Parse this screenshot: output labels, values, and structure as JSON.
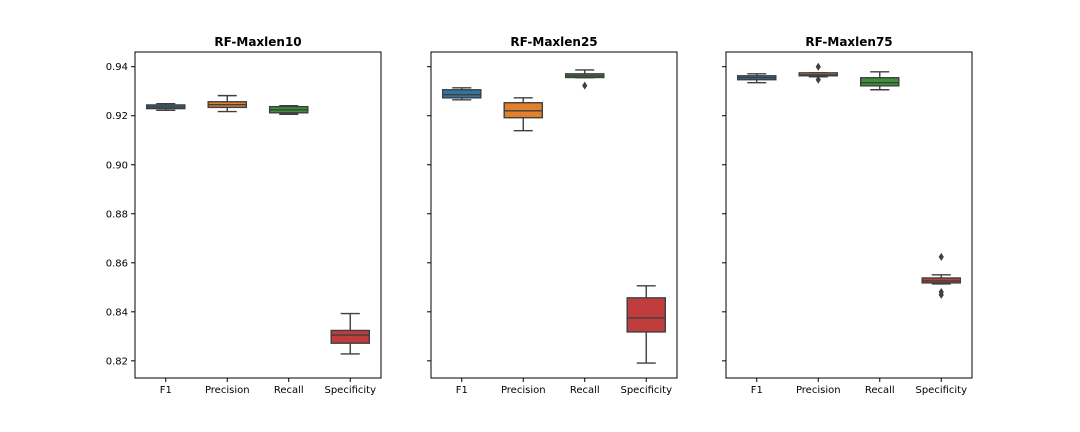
{
  "chart_data": [
    {
      "type": "box",
      "title": "RF-Maxlen10",
      "categories": [
        "F1",
        "Precision",
        "Recall",
        "Specificity"
      ],
      "colors": [
        "#3274a1",
        "#e1812c",
        "#3a923a",
        "#c03d3e"
      ],
      "ylim": [
        0.813,
        0.946
      ],
      "yticks": [
        "0.94",
        "0.92",
        "0.90",
        "0.88",
        "0.86",
        "0.84",
        "0.82"
      ],
      "show_ytick_labels": true,
      "boxes": [
        {
          "whisker_low": 0.9222,
          "q1": 0.9229,
          "median": 0.9236,
          "q3": 0.9244,
          "whisker_high": 0.9249,
          "outliers": []
        },
        {
          "whisker_low": 0.9217,
          "q1": 0.9234,
          "median": 0.9245,
          "q3": 0.9257,
          "whisker_high": 0.9282,
          "outliers": []
        },
        {
          "whisker_low": 0.9206,
          "q1": 0.9212,
          "median": 0.9224,
          "q3": 0.9237,
          "whisker_high": 0.9241,
          "outliers": []
        },
        {
          "whisker_low": 0.8228,
          "q1": 0.8272,
          "median": 0.8305,
          "q3": 0.8324,
          "whisker_high": 0.8393,
          "outliers": []
        }
      ]
    },
    {
      "type": "box",
      "title": "RF-Maxlen25",
      "categories": [
        "F1",
        "Precision",
        "Recall",
        "Specificity"
      ],
      "colors": [
        "#3274a1",
        "#e1812c",
        "#3a923a",
        "#c03d3e"
      ],
      "ylim": [
        0.813,
        0.946
      ],
      "yticks": [
        "0.94",
        "0.92",
        "0.90",
        "0.88",
        "0.86",
        "0.84",
        "0.82"
      ],
      "show_ytick_labels": false,
      "boxes": [
        {
          "whisker_low": 0.9265,
          "q1": 0.9273,
          "median": 0.9286,
          "q3": 0.9306,
          "whisker_high": 0.9314,
          "outliers": []
        },
        {
          "whisker_low": 0.9139,
          "q1": 0.9192,
          "median": 0.922,
          "q3": 0.9253,
          "whisker_high": 0.9273,
          "outliers": []
        },
        {
          "whisker_low": 0.9355,
          "q1": 0.9356,
          "median": 0.9363,
          "q3": 0.9371,
          "whisker_high": 0.9387,
          "outliers": [
            0.9323
          ]
        },
        {
          "whisker_low": 0.8191,
          "q1": 0.8318,
          "median": 0.8375,
          "q3": 0.8457,
          "whisker_high": 0.8506,
          "outliers": []
        }
      ]
    },
    {
      "type": "box",
      "title": "RF-Maxlen75",
      "categories": [
        "F1",
        "Precision",
        "Recall",
        "Specificity"
      ],
      "colors": [
        "#3274a1",
        "#e1812c",
        "#3a923a",
        "#c03d3e"
      ],
      "ylim": [
        0.813,
        0.946
      ],
      "yticks": [
        "0.94",
        "0.92",
        "0.90",
        "0.88",
        "0.86",
        "0.84",
        "0.82"
      ],
      "show_ytick_labels": false,
      "boxes": [
        {
          "whisker_low": 0.9335,
          "q1": 0.9347,
          "median": 0.9355,
          "q3": 0.9363,
          "whisker_high": 0.9371,
          "outliers": []
        },
        {
          "whisker_low": 0.9359,
          "q1": 0.9363,
          "median": 0.9367,
          "q3": 0.9375,
          "whisker_high": 0.9375,
          "outliers": [
            0.94,
            0.9347
          ]
        },
        {
          "whisker_low": 0.9306,
          "q1": 0.9322,
          "median": 0.9335,
          "q3": 0.9355,
          "whisker_high": 0.9379,
          "outliers": []
        },
        {
          "whisker_low": 0.8514,
          "q1": 0.8518,
          "median": 0.8526,
          "q3": 0.8538,
          "whisker_high": 0.8551,
          "outliers": [
            0.8624,
            0.8481,
            0.8469
          ]
        }
      ]
    }
  ]
}
